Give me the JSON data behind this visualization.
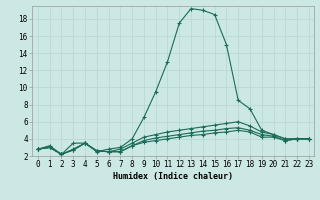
{
  "xlabel": "Humidex (Indice chaleur)",
  "bg_color": "#cce8e4",
  "line_color": "#1a6b5a",
  "grid_color": "#b8d4d0",
  "xlim": [
    -0.5,
    23.4
  ],
  "ylim": [
    2,
    19.5
  ],
  "xticks": [
    0,
    1,
    2,
    3,
    4,
    5,
    6,
    7,
    8,
    9,
    10,
    11,
    12,
    13,
    14,
    15,
    16,
    17,
    18,
    19,
    20,
    21,
    22,
    23
  ],
  "yticks": [
    2,
    4,
    6,
    8,
    10,
    12,
    14,
    16,
    18
  ],
  "series": [
    [
      2.8,
      3.2,
      2.2,
      3.5,
      3.5,
      2.5,
      2.8,
      3.0,
      4.0,
      6.5,
      9.5,
      13.0,
      17.5,
      19.2,
      19.0,
      18.5,
      15.0,
      8.5,
      7.5,
      5.0,
      4.5,
      4.0,
      4.0,
      4.0
    ],
    [
      2.8,
      3.0,
      2.2,
      2.8,
      3.5,
      2.6,
      2.5,
      2.8,
      3.5,
      4.2,
      4.5,
      4.8,
      5.0,
      5.2,
      5.4,
      5.6,
      5.8,
      6.0,
      5.5,
      4.8,
      4.5,
      4.0,
      4.0,
      4.0
    ],
    [
      2.8,
      3.0,
      2.2,
      2.7,
      3.5,
      2.6,
      2.5,
      2.5,
      3.2,
      3.8,
      4.1,
      4.3,
      4.5,
      4.7,
      4.9,
      5.0,
      5.2,
      5.3,
      5.0,
      4.5,
      4.3,
      3.8,
      4.0,
      4.0
    ],
    [
      2.8,
      3.0,
      2.2,
      2.7,
      3.5,
      2.6,
      2.5,
      2.5,
      3.2,
      3.6,
      3.8,
      4.0,
      4.2,
      4.4,
      4.5,
      4.7,
      4.8,
      5.0,
      4.8,
      4.2,
      4.2,
      3.8,
      4.0,
      4.0
    ]
  ],
  "tick_fontsize": 5.5,
  "xlabel_fontsize": 6.0
}
